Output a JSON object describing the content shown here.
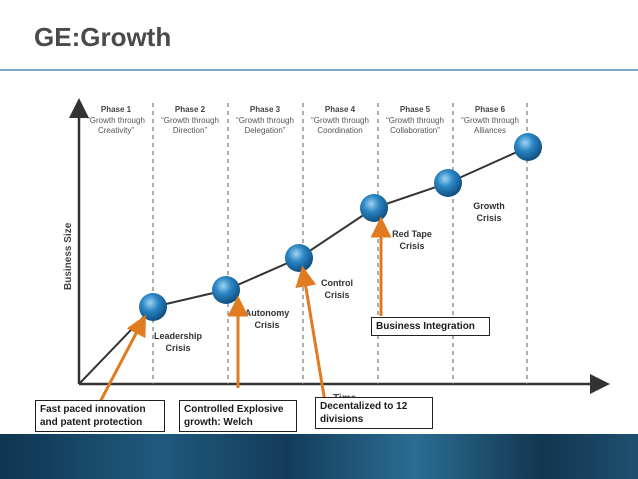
{
  "page": {
    "title": "GE:Growth"
  },
  "diagram": {
    "phases": [
      {
        "name": "Phase 1",
        "line1": "“Growth through",
        "line2": "Creativity”"
      },
      {
        "name": "Phase 2",
        "line1": "“Growth through",
        "line2": "Direction”"
      },
      {
        "name": "Phase 3",
        "line1": "“Growth through",
        "line2": "Delegation”"
      },
      {
        "name": "Phase 4",
        "line1": "“Growth through",
        "line2": "Coordination"
      },
      {
        "name": "Phase 5",
        "line1": "“Growth through",
        "line2": "Collaboration”"
      },
      {
        "name": "Phase 6",
        "line1": "“Growth through",
        "line2": "Alliances"
      }
    ],
    "crises": [
      {
        "line1": "Leadership",
        "line2": "Crisis"
      },
      {
        "line1": "Autonomy",
        "line2": "Crisis"
      },
      {
        "line1": "Control",
        "line2": "Crisis"
      },
      {
        "line1": "Red Tape",
        "line2": "Crisis"
      },
      {
        "line1": "Growth",
        "line2": "Crisis"
      }
    ],
    "y_axis_label": "Business Size",
    "x_axis_label": "Time",
    "colors": {
      "node": "#2b86c5",
      "arrow": "#e07b1f",
      "axis": "#333333"
    }
  },
  "callouts": {
    "innovation": {
      "line1": "Fast paced innovation",
      "line2": "and patent protection"
    },
    "explosive": {
      "line1": "Controlled Explosive",
      "line2": "growth: Welch"
    },
    "decentralized": {
      "line1": "Decentalized to 12",
      "line2": "divisions"
    },
    "integration": {
      "line1": "Business Integration"
    }
  }
}
